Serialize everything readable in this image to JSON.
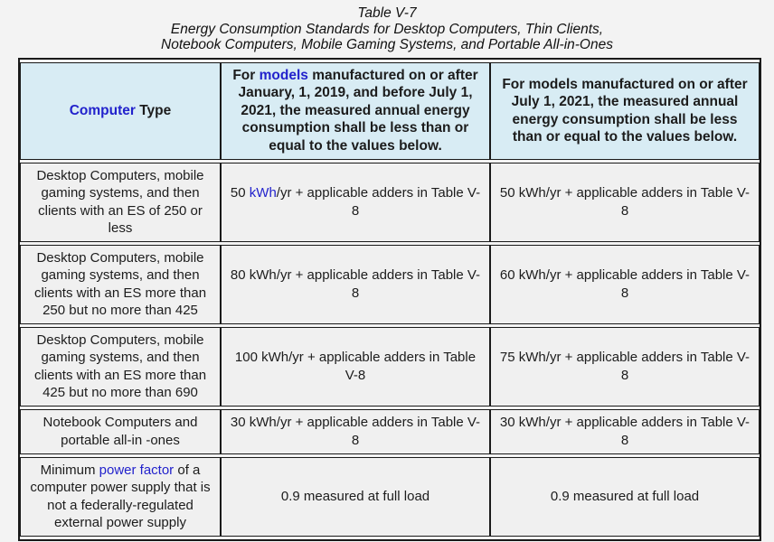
{
  "colors": {
    "page_bg": "#f3f3f3",
    "cell_bg": "#f0f0f0",
    "header_bg": "#d8ecf4",
    "link": "#2222cc",
    "border": "#1a1a1a",
    "text": "#1c1c1c"
  },
  "title": {
    "line1": "Table V-7",
    "line2": "Energy Consumption Standards for Desktop Computers, Thin Clients,",
    "line3": "Notebook Computers, Mobile Gaming Systems, and Portable All-in-Ones"
  },
  "table": {
    "header": {
      "col1": {
        "link": "Computer",
        "post": " Type"
      },
      "col2": {
        "pre": "For ",
        "link": "models",
        "post": " manufactured on or after January, 1, 2019, and before July 1, 2021, the measured annual energy consumption shall be less than or equal to the values below."
      },
      "col3": {
        "text": "For models manufactured on or after July 1, 2021, the measured annual energy consumption shall be less than or equal to the values below."
      }
    },
    "rows": [
      {
        "cells": [
          {
            "text": "Desktop Computers, mobile gaming systems, and then clients with an ES of 250 or less"
          },
          {
            "pre": "50 ",
            "link": "kWh",
            "post": "/yr + applicable adders in Table V-8"
          },
          {
            "text": "50 kWh/yr + applicable adders in Table V-8"
          }
        ]
      },
      {
        "cells": [
          {
            "text": "Desktop Computers, mobile gaming systems, and then clients with an ES more than 250 but no more than 425"
          },
          {
            "text": "80 kWh/yr + applicable adders in Table V-8"
          },
          {
            "text": "60 kWh/yr + applicable adders in Table V-8"
          }
        ]
      },
      {
        "cells": [
          {
            "text": "Desktop Computers, mobile gaming systems, and then clients with an ES more than 425 but no more than 690"
          },
          {
            "text": "100 kWh/yr + applicable adders in Table V-8"
          },
          {
            "text": "75 kWh/yr + applicable adders in Table V-8"
          }
        ]
      },
      {
        "cells": [
          {
            "text": "Notebook Computers and portable all-in -ones"
          },
          {
            "text": "30 kWh/yr + applicable adders in Table V-8"
          },
          {
            "text": "30 kWh/yr + applicable adders in Table V-8"
          }
        ]
      },
      {
        "cells": [
          {
            "pre": "Minimum ",
            "link": "power factor",
            "post": " of a computer power supply that is not a federally-regulated external power supply"
          },
          {
            "text": "0.9 measured at full load"
          },
          {
            "text": "0.9 measured at full load"
          }
        ]
      }
    ]
  }
}
